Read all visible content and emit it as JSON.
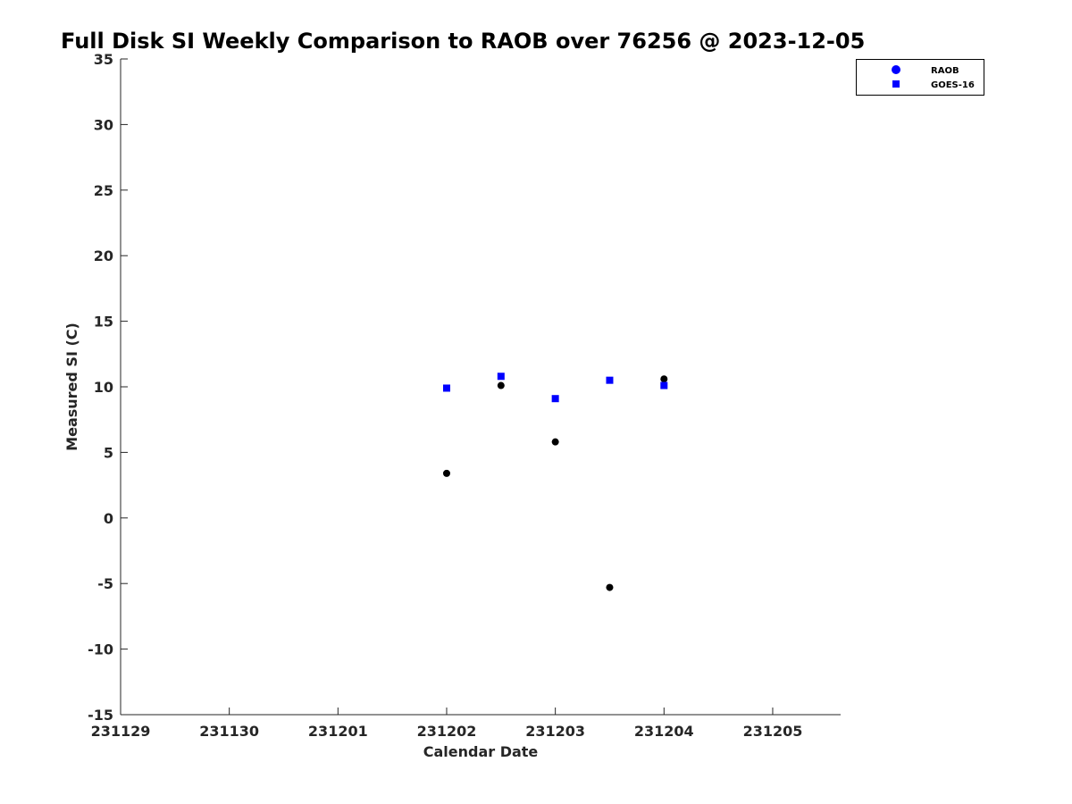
{
  "chart_data": {
    "type": "scatter",
    "title": "Full Disk SI Weekly Comparison to RAOB over 76256 @ 2023-12-05",
    "xlabel": "Calendar Date",
    "ylabel": "Measured SI (C)",
    "xlim": [
      "2023-11-29",
      "2023-12-05 15:00"
    ],
    "ylim": [
      -15,
      35
    ],
    "x_ticks": [
      {
        "date": "2023-11-29",
        "label": "231129"
      },
      {
        "date": "2023-11-30",
        "label": "231130"
      },
      {
        "date": "2023-12-01",
        "label": "231201"
      },
      {
        "date": "2023-12-02",
        "label": "231202"
      },
      {
        "date": "2023-12-03",
        "label": "231203"
      },
      {
        "date": "2023-12-04",
        "label": "231204"
      },
      {
        "date": "2023-12-05",
        "label": "231205"
      }
    ],
    "y_ticks": [
      35,
      30,
      25,
      20,
      15,
      10,
      5,
      0,
      -5,
      -10,
      -15
    ],
    "grid": false,
    "legend_position": "top-right",
    "series": [
      {
        "name": "RAOB",
        "marker": "circle",
        "legend_color": "#0000ff",
        "color": "#000000",
        "points": [
          {
            "x": "2023-12-02 00:00",
            "y": 3.4
          },
          {
            "x": "2023-12-02 12:00",
            "y": 10.1
          },
          {
            "x": "2023-12-03 00:00",
            "y": 5.8
          },
          {
            "x": "2023-12-03 12:00",
            "y": -5.3
          },
          {
            "x": "2023-12-04 00:00",
            "y": 10.6
          }
        ]
      },
      {
        "name": "GOES-16",
        "marker": "square",
        "legend_color": "#0000ff",
        "color": "#0000ff",
        "points": [
          {
            "x": "2023-12-02 00:00",
            "y": 9.9
          },
          {
            "x": "2023-12-02 12:00",
            "y": 10.8
          },
          {
            "x": "2023-12-03 00:00",
            "y": 9.1
          },
          {
            "x": "2023-12-03 12:00",
            "y": 10.5
          },
          {
            "x": "2023-12-04 00:00",
            "y": 10.1
          }
        ]
      }
    ]
  }
}
